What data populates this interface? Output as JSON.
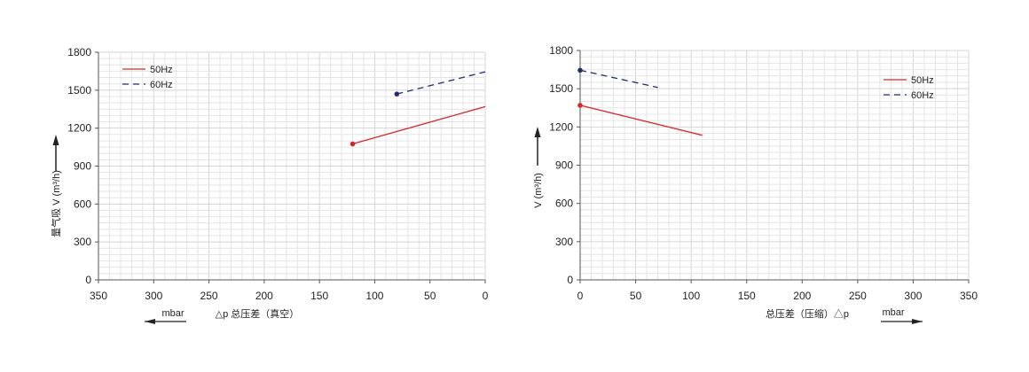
{
  "chart_data": [
    {
      "type": "line",
      "xlabel": "△p 总压差（真空）",
      "xunit": "mbar",
      "ylabel": "量气吸 V (m³/h)",
      "xlim": [
        350,
        0
      ],
      "x_reversed": true,
      "ylim": [
        0,
        1800
      ],
      "xticks": [
        "350",
        "300",
        "250",
        "200",
        "150",
        "100",
        "50",
        "0"
      ],
      "yticks": [
        "0",
        "300",
        "600",
        "900",
        "1200",
        "1500",
        "1800"
      ],
      "grid": true,
      "legend": "top-left",
      "series": [
        {
          "name": "50Hz",
          "color": "#d62728",
          "dash": false,
          "x": [
            120,
            0
          ],
          "y": [
            1075,
            1370
          ]
        },
        {
          "name": "60Hz",
          "color": "#1f2f6e",
          "dash": true,
          "x": [
            80,
            0
          ],
          "y": [
            1470,
            1645
          ]
        }
      ]
    },
    {
      "type": "line",
      "xlabel": "总压差（压缩）△p",
      "xunit": "mbar",
      "ylabel": "V (m³/h)",
      "xlim": [
        0,
        350
      ],
      "x_reversed": false,
      "ylim": [
        0,
        1800
      ],
      "xticks": [
        "0",
        "50",
        "100",
        "150",
        "200",
        "250",
        "300",
        "350"
      ],
      "yticks": [
        "0",
        "300",
        "600",
        "900",
        "1200",
        "1500",
        "1800"
      ],
      "grid": true,
      "legend": "top-right",
      "series": [
        {
          "name": "50Hz",
          "color": "#d62728",
          "dash": false,
          "x": [
            0,
            110
          ],
          "y": [
            1370,
            1135
          ]
        },
        {
          "name": "60Hz",
          "color": "#1f2f6e",
          "dash": true,
          "x": [
            0,
            70
          ],
          "y": [
            1645,
            1510
          ]
        }
      ]
    }
  ]
}
